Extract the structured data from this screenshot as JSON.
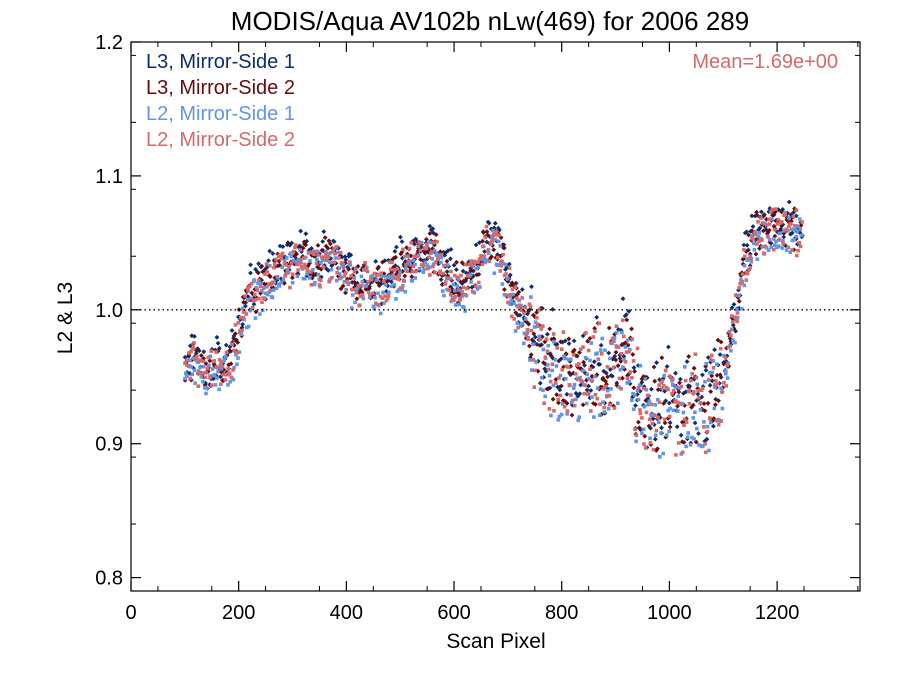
{
  "chart_data": {
    "type": "scatter",
    "title": "MODIS/Aqua AV102b nLw(469) for 2006 289",
    "xlabel": "Scan Pixel",
    "ylabel": "L2 & L3",
    "xlim": [
      0,
      1354
    ],
    "ylim": [
      0.79,
      1.2
    ],
    "xticks": [
      0,
      200,
      400,
      600,
      800,
      1000,
      1200
    ],
    "yticks": [
      0.8,
      0.9,
      1.0,
      1.1,
      1.2
    ],
    "ytick_labels": [
      "0.8",
      "0.9",
      "1.0",
      "1.1",
      "1.2"
    ],
    "reference_line": {
      "y": 1.0,
      "style": "dotted"
    },
    "annotation": {
      "text": "Mean=1.69e+00",
      "color": "#d66a6a",
      "placement": "top-right"
    },
    "legend_placement": "top-left",
    "series": [
      {
        "name": "L3, Mirror-Side 1",
        "color": "#0b2f6b",
        "marker": "diamond",
        "offset": 0.003,
        "x": [
          100,
          120,
          140,
          160,
          180,
          200,
          220,
          240,
          260,
          280,
          300,
          320,
          340,
          360,
          380,
          400,
          420,
          440,
          460,
          480,
          500,
          520,
          540,
          560,
          580,
          600,
          620,
          640,
          660,
          680,
          700,
          720,
          740,
          760,
          780,
          800,
          820,
          840,
          860,
          880,
          900,
          920,
          940,
          960,
          980,
          1000,
          1020,
          1040,
          1060,
          1080,
          1100,
          1120,
          1140,
          1160,
          1180,
          1200,
          1220,
          1240
        ],
        "y": [
          0.958,
          0.968,
          0.952,
          0.962,
          0.958,
          0.985,
          1.012,
          1.018,
          1.028,
          1.035,
          1.038,
          1.04,
          1.037,
          1.04,
          1.036,
          1.028,
          1.022,
          1.026,
          1.018,
          1.025,
          1.035,
          1.038,
          1.044,
          1.048,
          1.03,
          1.025,
          1.022,
          1.03,
          1.05,
          1.052,
          1.025,
          1.0,
          0.99,
          0.975,
          0.96,
          0.955,
          0.95,
          0.955,
          0.958,
          0.955,
          0.962,
          0.98,
          0.94,
          0.925,
          0.93,
          0.935,
          0.928,
          0.935,
          0.93,
          0.94,
          0.955,
          0.99,
          1.04,
          1.058,
          1.062,
          1.065,
          1.068,
          1.06
        ]
      },
      {
        "name": "L3, Mirror-Side 2",
        "color": "#6b0a0a",
        "marker": "diamond",
        "offset": -0.002,
        "x": [
          100,
          120,
          140,
          160,
          180,
          200,
          220,
          240,
          260,
          280,
          300,
          320,
          340,
          360,
          380,
          400,
          420,
          440,
          460,
          480,
          500,
          520,
          540,
          560,
          580,
          600,
          620,
          640,
          660,
          680,
          700,
          720,
          740,
          760,
          780,
          800,
          820,
          840,
          860,
          880,
          900,
          920,
          940,
          960,
          980,
          1000,
          1020,
          1040,
          1060,
          1080,
          1100,
          1120,
          1140,
          1160,
          1180,
          1200,
          1220,
          1240
        ],
        "y": [
          0.958,
          0.968,
          0.952,
          0.962,
          0.958,
          0.985,
          1.012,
          1.018,
          1.028,
          1.035,
          1.038,
          1.04,
          1.037,
          1.04,
          1.036,
          1.028,
          1.022,
          1.026,
          1.018,
          1.025,
          1.035,
          1.038,
          1.044,
          1.048,
          1.03,
          1.025,
          1.022,
          1.03,
          1.05,
          1.052,
          1.025,
          1.0,
          0.99,
          0.975,
          0.96,
          0.955,
          0.95,
          0.955,
          0.958,
          0.955,
          0.962,
          0.98,
          0.94,
          0.925,
          0.93,
          0.935,
          0.928,
          0.935,
          0.93,
          0.94,
          0.955,
          0.99,
          1.04,
          1.058,
          1.062,
          1.065,
          1.068,
          1.06
        ]
      },
      {
        "name": "L2, Mirror-Side 1",
        "color": "#5f96e6",
        "marker": "square",
        "offset": -0.008,
        "x": [
          100,
          120,
          140,
          160,
          180,
          200,
          220,
          240,
          260,
          280,
          300,
          320,
          340,
          360,
          380,
          400,
          420,
          440,
          460,
          480,
          500,
          520,
          540,
          560,
          580,
          600,
          620,
          640,
          660,
          680,
          700,
          720,
          740,
          760,
          780,
          800,
          820,
          840,
          860,
          880,
          900,
          920,
          940,
          960,
          980,
          1000,
          1020,
          1040,
          1060,
          1080,
          1100,
          1120,
          1140,
          1160,
          1180,
          1200,
          1220,
          1240
        ],
        "y": [
          0.958,
          0.968,
          0.952,
          0.962,
          0.958,
          0.985,
          1.012,
          1.018,
          1.028,
          1.035,
          1.038,
          1.04,
          1.037,
          1.04,
          1.036,
          1.028,
          1.022,
          1.026,
          1.018,
          1.025,
          1.035,
          1.038,
          1.044,
          1.048,
          1.03,
          1.025,
          1.022,
          1.03,
          1.05,
          1.052,
          1.025,
          1.0,
          0.99,
          0.975,
          0.96,
          0.955,
          0.95,
          0.955,
          0.958,
          0.955,
          0.962,
          0.98,
          0.94,
          0.925,
          0.93,
          0.935,
          0.928,
          0.935,
          0.93,
          0.94,
          0.955,
          0.99,
          1.04,
          1.058,
          1.062,
          1.065,
          1.068,
          1.06
        ]
      },
      {
        "name": "L2, Mirror-Side 2",
        "color": "#d66a6a",
        "marker": "square",
        "offset": -0.004,
        "x": [
          100,
          120,
          140,
          160,
          180,
          200,
          220,
          240,
          260,
          280,
          300,
          320,
          340,
          360,
          380,
          400,
          420,
          440,
          460,
          480,
          500,
          520,
          540,
          560,
          580,
          600,
          620,
          640,
          660,
          680,
          700,
          720,
          740,
          760,
          780,
          800,
          820,
          840,
          860,
          880,
          900,
          920,
          940,
          960,
          980,
          1000,
          1020,
          1040,
          1060,
          1080,
          1100,
          1120,
          1140,
          1160,
          1180,
          1200,
          1220,
          1240
        ],
        "y": [
          0.958,
          0.968,
          0.952,
          0.962,
          0.958,
          0.985,
          1.012,
          1.018,
          1.028,
          1.035,
          1.038,
          1.04,
          1.037,
          1.04,
          1.036,
          1.028,
          1.022,
          1.026,
          1.018,
          1.025,
          1.035,
          1.038,
          1.044,
          1.048,
          1.03,
          1.025,
          1.022,
          1.03,
          1.05,
          1.052,
          1.025,
          1.0,
          0.99,
          0.975,
          0.96,
          0.955,
          0.95,
          0.955,
          0.958,
          0.955,
          0.962,
          0.98,
          0.94,
          0.925,
          0.93,
          0.935,
          0.928,
          0.935,
          0.93,
          0.94,
          0.955,
          0.99,
          1.04,
          1.058,
          1.062,
          1.065,
          1.068,
          1.06
        ]
      }
    ]
  }
}
